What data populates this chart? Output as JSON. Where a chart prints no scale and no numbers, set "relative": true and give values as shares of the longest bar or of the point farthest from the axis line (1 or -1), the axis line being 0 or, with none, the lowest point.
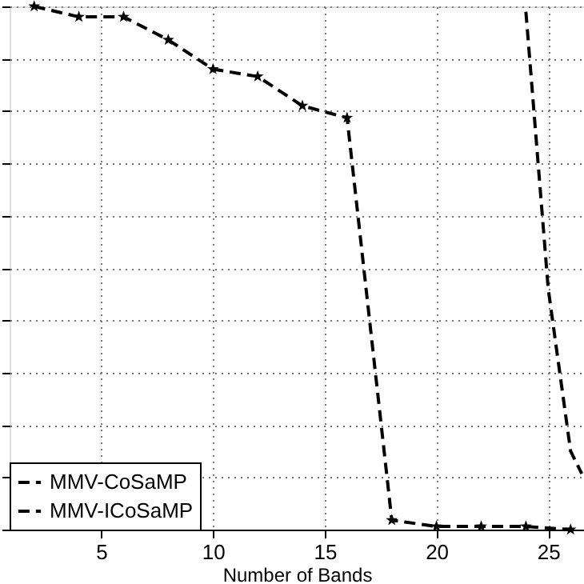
{
  "chart_data": {
    "type": "line",
    "xlabel": "Number of Bands",
    "relative": true,
    "xlim": [
      0.9,
      26.6
    ],
    "xticks": [
      5,
      10,
      15,
      20,
      25
    ],
    "series": [
      {
        "name": "MMV-CoSaMP",
        "color": "#000000",
        "marker": "star",
        "line_style": "dashed",
        "x": [
          2,
          4,
          6,
          8,
          10,
          12,
          14,
          16,
          18,
          20,
          22,
          24,
          26
        ],
        "values": [
          1.0,
          0.98,
          0.98,
          0.936,
          0.88,
          0.866,
          0.81,
          0.787,
          0.018,
          0.006,
          0.006,
          0.006,
          0.0
        ]
      },
      {
        "name": "MMV-ICoSaMP",
        "color": "#000000",
        "marker": "none",
        "line_style": "dashed",
        "x": [
          24,
          25,
          26,
          26.5
        ],
        "values": [
          0.99,
          0.46,
          0.15,
          0.107
        ]
      }
    ],
    "grid": true,
    "legend": "bottom left",
    "tick_labels": "x"
  }
}
